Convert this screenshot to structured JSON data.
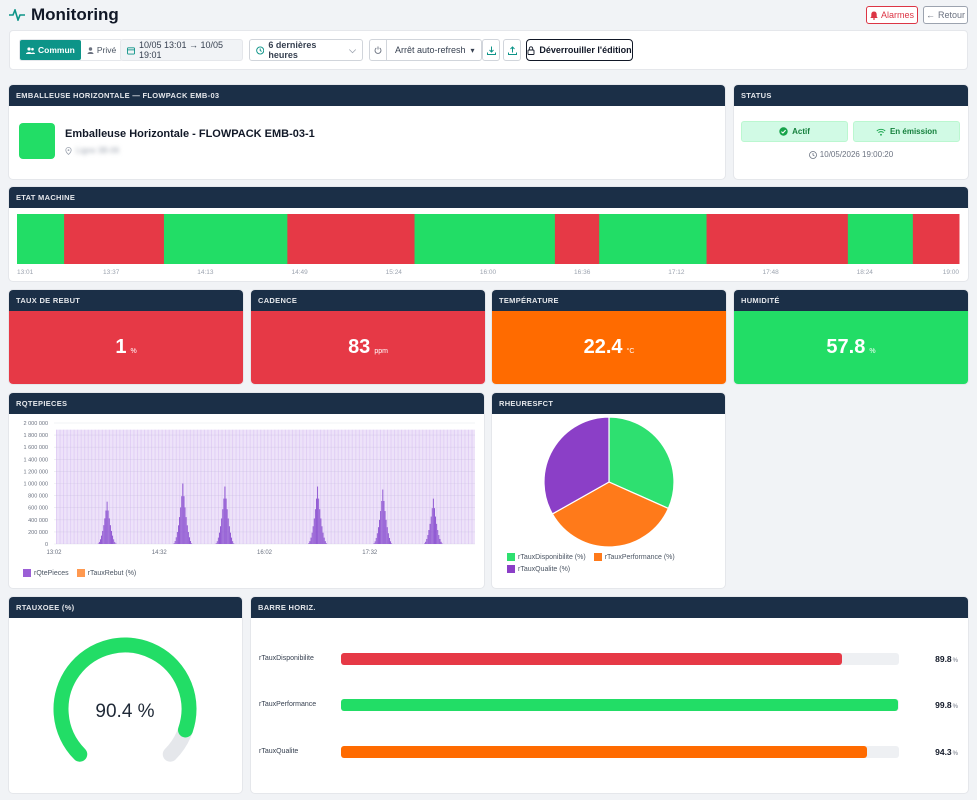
{
  "app": {
    "title": "Monitoring",
    "alarms_label": "Alarmes",
    "back_label": "Retour"
  },
  "toolbar": {
    "scope_common": "Commun",
    "scope_private": "Privé",
    "date_range": "10/05 13:01 → 10/05 19:01",
    "time_range": "6 dernières heures",
    "refresh": "Arrêt auto-refresh",
    "unlock": "Déverrouiller l'édition"
  },
  "machine": {
    "header": "EMBALLEUSE HORIZONTALE — FLOWPACK EMB-03",
    "name": "Emballeuse Horizontale - FLOWPACK EMB-03-1",
    "location": "Ligne 3B-06",
    "color": "#22dd66"
  },
  "status": {
    "header": "STATUS",
    "active": "Actif",
    "emission": "En émission",
    "timestamp": "10/05/2026 19:00:20"
  },
  "etat": {
    "header": "ETAT MACHINE",
    "colors": {
      "run": "#22dd66",
      "stop": "#e63946"
    },
    "segments": [
      {
        "state": "run",
        "share": 0.05
      },
      {
        "state": "stop",
        "share": 0.106
      },
      {
        "state": "run",
        "share": 0.131
      },
      {
        "state": "stop",
        "share": 0.135
      },
      {
        "state": "run",
        "share": 0.149
      },
      {
        "state": "stop",
        "share": 0.047
      },
      {
        "state": "run",
        "share": 0.114
      },
      {
        "state": "stop",
        "share": 0.15
      },
      {
        "state": "run",
        "share": 0.069
      },
      {
        "state": "stop",
        "share": 0.049
      }
    ],
    "ticks": [
      "13:01",
      "13:37",
      "14:13",
      "14:49",
      "15:24",
      "16:00",
      "16:36",
      "17:12",
      "17:48",
      "18:24",
      "19:00"
    ]
  },
  "kpis": [
    {
      "id": "rebut",
      "title": "TAUX DE REBUT",
      "value": "1",
      "unit": "%",
      "color": "#e63946"
    },
    {
      "id": "cadence",
      "title": "CADENCE",
      "value": "83",
      "unit": "ppm",
      "color": "#e63946"
    },
    {
      "id": "temp",
      "title": "TEMPÉRATURE",
      "value": "22.4",
      "unit": "°C",
      "color": "#ff6b00"
    },
    {
      "id": "hum",
      "title": "HUMIDITÉ",
      "value": "57.8",
      "unit": "%",
      "color": "#22dd66"
    }
  ],
  "chart_data": [
    {
      "type": "bar",
      "title": "RQTEPIECES",
      "yticks": [
        "2 000 000",
        "1 800 000",
        "1 600 000",
        "1 400 000",
        "1 200 000",
        "1 000 000",
        "800 000",
        "600 000",
        "400 000",
        "200 000",
        "0"
      ],
      "ylim": [
        0,
        2000000
      ],
      "xticks": [
        "13:02",
        "14:32",
        "16:02",
        "17:32"
      ],
      "series": [
        {
          "name": "rQtePieces",
          "color": "#9b5fd6"
        },
        {
          "name": "rTauxRebut (%)",
          "color": "#ff9950"
        }
      ],
      "peaks": [
        {
          "x": 0.125,
          "v": 700000
        },
        {
          "x": 0.305,
          "v": 1000000
        },
        {
          "x": 0.405,
          "v": 950000
        },
        {
          "x": 0.625,
          "v": 950000
        },
        {
          "x": 0.78,
          "v": 900000
        },
        {
          "x": 0.9,
          "v": 750000
        }
      ]
    },
    {
      "type": "pie",
      "title": "RHEURESFCT",
      "slices": [
        {
          "name": "rTauxDisponibilite (%)",
          "value": 33.7,
          "color": "#2ee070"
        },
        {
          "name": "rTauxPerformance (%)",
          "value": 37.4,
          "color": "#ff7a1a"
        },
        {
          "name": "rTauxQualite (%)",
          "value": 35.3,
          "color": "#8b3fc7"
        }
      ]
    },
    {
      "type": "gauge",
      "title": "RTAUXOEE (%)",
      "value": 90.4,
      "display": "90.4 %",
      "color": "#22dd66"
    },
    {
      "type": "bar",
      "orientation": "horizontal",
      "title": "BARRE HORIZ.",
      "categories": [
        "rTauxDisponibilite",
        "rTauxPerformance",
        "rTauxQualite"
      ],
      "values": [
        89.8,
        99.8,
        94.3
      ],
      "labels": [
        "89.8",
        "99.8",
        "94.3"
      ],
      "unit": "%",
      "colors": [
        "#e63946",
        "#22dd66",
        "#ff6b00"
      ],
      "xlim": [
        0,
        100
      ]
    }
  ]
}
